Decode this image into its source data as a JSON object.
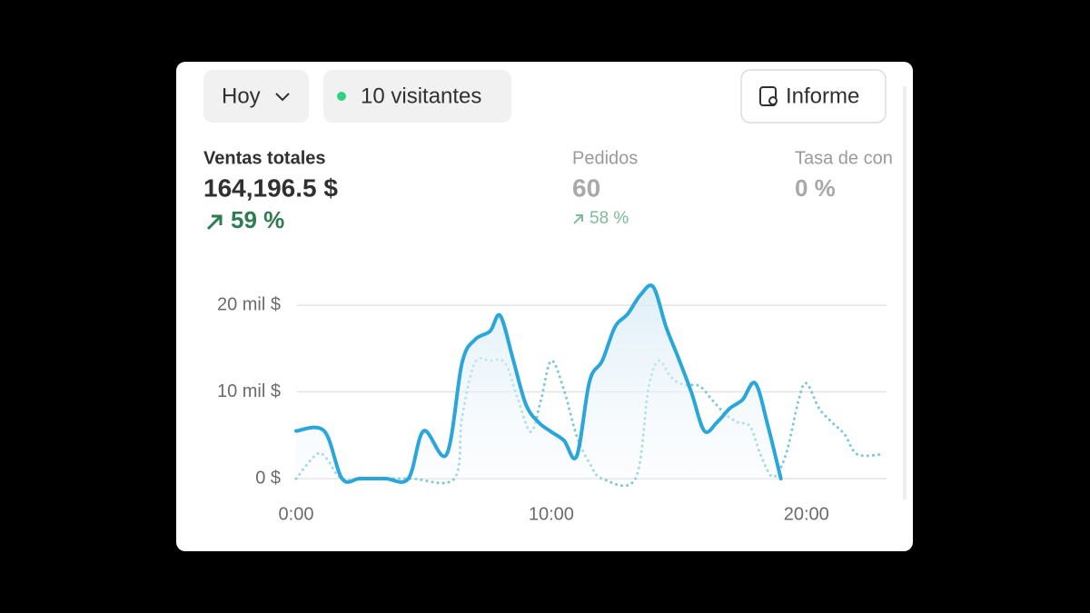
{
  "controls": {
    "period": "Hoy",
    "visitors": "10 visitantes",
    "report": "Informe"
  },
  "metrics": [
    {
      "label": "Ventas totales",
      "value": "164,196.5 $",
      "change": "59 %"
    },
    {
      "label": "Pedidos",
      "value": "60",
      "change": "58 %"
    },
    {
      "label": "Tasa de con",
      "value": "0 %"
    }
  ],
  "chart_data": {
    "type": "line",
    "xlim": [
      0,
      23
    ],
    "xticks": [
      {
        "value": 0,
        "label": "0:00"
      },
      {
        "value": 10,
        "label": "10:00"
      },
      {
        "value": 20,
        "label": "20:00"
      }
    ],
    "ylim": [
      0,
      22000
    ],
    "yticks": [
      {
        "value": 0,
        "label": "0 $"
      },
      {
        "value": 10000,
        "label": "10 mil $"
      },
      {
        "value": 20000,
        "label": "20 mil $"
      }
    ],
    "grid": true,
    "series": [
      {
        "color": "#2ba6d9",
        "style": "solid",
        "area": true,
        "x": [
          0,
          1.1,
          1.8,
          2.5,
          3.5,
          4.4,
          5.0,
          5.9,
          6.5,
          7.0,
          7.6,
          8.0,
          8.5,
          9.0,
          9.5,
          10.0,
          10.5,
          11.0,
          11.5,
          12.0,
          12.5,
          13.0,
          13.5,
          14.0,
          14.5,
          15.0,
          15.5,
          16.0,
          16.5,
          17.0,
          17.5,
          18.0,
          18.5,
          19.0
        ],
        "values": [
          5500,
          5500,
          0,
          0,
          0,
          0,
          5500,
          2800,
          13300,
          16000,
          17000,
          18800,
          13800,
          8600,
          6500,
          5400,
          4400,
          2600,
          11200,
          13600,
          17500,
          19000,
          21200,
          22100,
          17500,
          13800,
          9900,
          5500,
          6500,
          8100,
          9100,
          11000,
          6000,
          0
        ]
      },
      {
        "color": "#7cc8d8",
        "style": "dotted",
        "x": [
          0,
          0.8,
          1.2,
          1.8,
          3.0,
          4.5,
          6.2,
          6.5,
          7.0,
          7.6,
          8.2,
          8.7,
          9.2,
          9.6,
          10.0,
          10.5,
          11.0,
          11.5,
          12.0,
          13.3,
          13.8,
          14.2,
          14.7,
          15.2,
          15.8,
          16.3,
          16.8,
          17.3,
          17.8,
          18.2,
          18.7,
          19.2,
          19.7,
          20.0,
          20.5,
          21.0,
          21.5,
          22.0,
          23.0
        ],
        "values": [
          0,
          2800,
          2300,
          0,
          0,
          0,
          0,
          7000,
          13300,
          13600,
          13300,
          9100,
          5400,
          9100,
          13600,
          10200,
          4900,
          1800,
          0,
          0,
          10200,
          13600,
          11700,
          10800,
          10700,
          9100,
          7500,
          6500,
          6000,
          2800,
          200,
          2800,
          9100,
          11000,
          8100,
          6500,
          5100,
          2800,
          2800
        ]
      }
    ]
  }
}
